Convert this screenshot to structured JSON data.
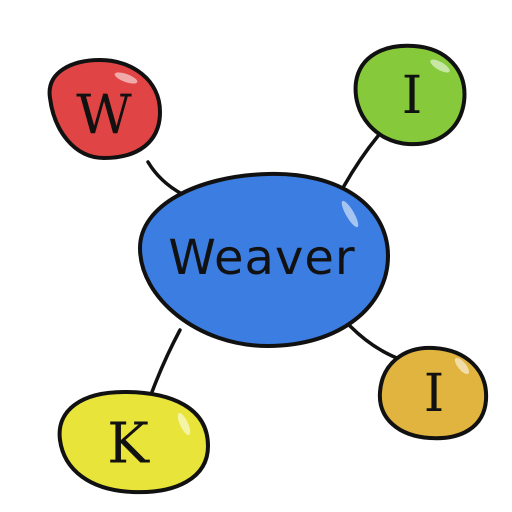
{
  "logo": {
    "center": {
      "label": "Weaver",
      "color": "#3b7de0"
    },
    "nodes": [
      {
        "letter": "W",
        "color": "#e04444"
      },
      {
        "letter": "I",
        "color": "#86c93a"
      },
      {
        "letter": "K",
        "color": "#e8e43a"
      },
      {
        "letter": "I",
        "color": "#e0b43e"
      }
    ]
  }
}
